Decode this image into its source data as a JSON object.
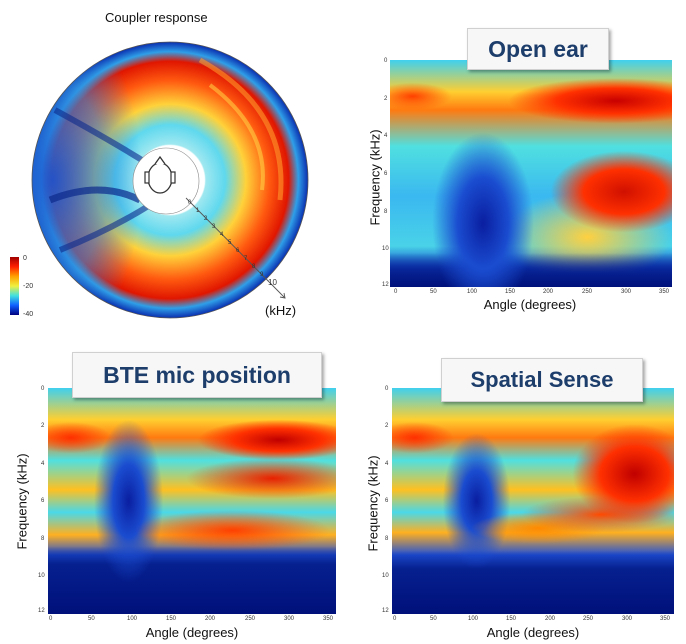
{
  "chart_data": [
    {
      "type": "polar-heatmap",
      "title": "Coupler response",
      "radial_label": "(kHz)",
      "radial_ticks": [
        "0",
        "1",
        "2",
        "3",
        "4",
        "5",
        "6",
        "7",
        "8",
        "9",
        "10"
      ],
      "colorbar_ticks": [
        "0",
        "-20",
        "-40"
      ],
      "colorbar_range": [
        -40,
        0
      ]
    },
    {
      "type": "heatmap",
      "title": "Open ear",
      "xlabel": "Angle (degrees)",
      "ylabel": "Frequency (kHz)",
      "xticks": [
        "0",
        "50",
        "100",
        "150",
        "200",
        "250",
        "300",
        "350"
      ],
      "yticks": [
        "0",
        "2",
        "4",
        "6",
        "8",
        "10",
        "12"
      ],
      "xlim": [
        0,
        360
      ],
      "ylim": [
        12,
        0
      ]
    },
    {
      "type": "heatmap",
      "title": "BTE  mic position",
      "xlabel": "Angle (degrees)",
      "ylabel": "Frequency (kHz)",
      "xticks": [
        "0",
        "50",
        "100",
        "150",
        "200",
        "250",
        "300",
        "350"
      ],
      "yticks": [
        "0",
        "2",
        "4",
        "6",
        "8",
        "10",
        "12"
      ],
      "xlim": [
        0,
        360
      ],
      "ylim": [
        12,
        0
      ]
    },
    {
      "type": "heatmap",
      "title": "Spatial Sense",
      "xlabel": "Angle (degrees)",
      "ylabel": "Frequency (kHz)",
      "xticks": [
        "0",
        "50",
        "100",
        "150",
        "200",
        "250",
        "300",
        "350"
      ],
      "yticks": [
        "0",
        "2",
        "4",
        "6",
        "8",
        "10",
        "12"
      ],
      "xlim": [
        0,
        360
      ],
      "ylim": [
        12,
        0
      ]
    }
  ],
  "colors": {
    "low": "#00007f",
    "mid": "#3fd3e8",
    "high": "#d40000",
    "title_text": "#1d3d6b"
  }
}
